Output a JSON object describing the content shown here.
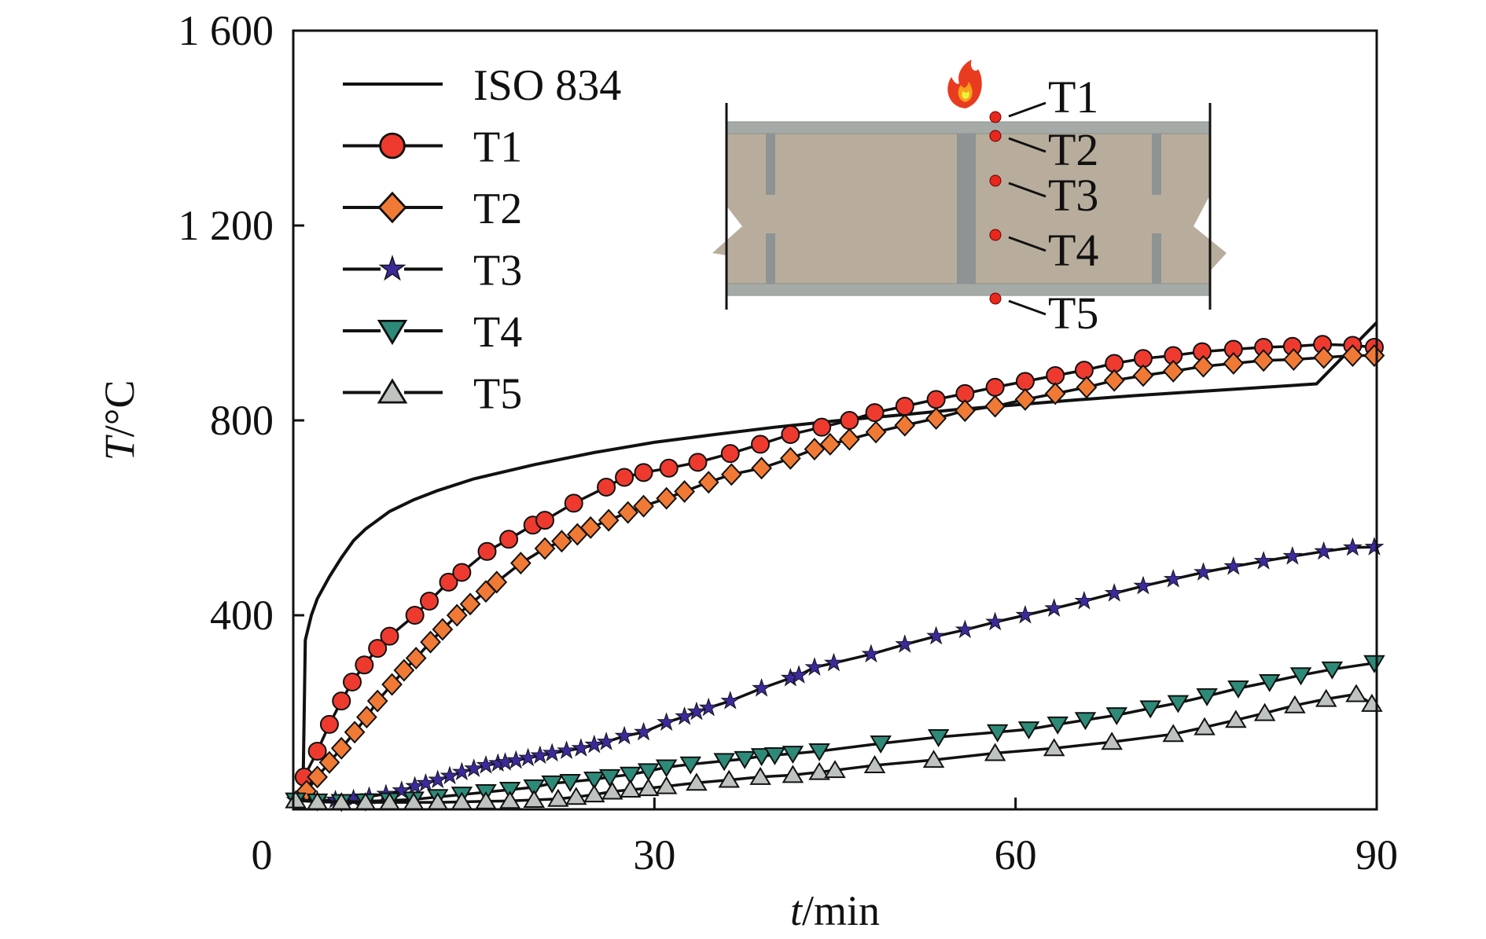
{
  "chart_data": {
    "type": "line",
    "xlabel": {
      "italic": "t",
      "rest": "/min"
    },
    "ylabel": {
      "italic": "T",
      "rest": "/°C"
    },
    "xlim": [
      0,
      90
    ],
    "ylim": [
      0,
      1600
    ],
    "x_ticks": [
      "0",
      "30",
      "60",
      "90"
    ],
    "x_tick_values": [
      0,
      30,
      60,
      90
    ],
    "y_ticks": [
      "1 600",
      "1 200",
      "800",
      "400"
    ],
    "y_tick_values": [
      1600,
      1200,
      800,
      400
    ],
    "grid": false,
    "legend_position": "top-left",
    "series": [
      {
        "name": "ISO 834",
        "marker": "none",
        "color": "#111111",
        "x": [
          0.8,
          1,
          1.5,
          2,
          3,
          4,
          5,
          6,
          8,
          10,
          12,
          15,
          20,
          25,
          30,
          35,
          40,
          45,
          50,
          55,
          60,
          65,
          70,
          75,
          80,
          85,
          90
        ],
        "y": [
          20,
          349,
          400,
          434,
          479,
          518,
          553,
          577,
          613,
          637,
          656,
          680,
          709,
          734,
          755,
          771,
          786,
          799,
          810,
          822,
          832,
          842,
          851,
          859,
          867,
          875,
          1001
        ]
      },
      {
        "name": "T1",
        "marker": "circle",
        "color": "#ee3a2e",
        "x": [
          0.9,
          2,
          3,
          4,
          4.9,
          5.9,
          7,
          8,
          10.1,
          11.3,
          12.9,
          14,
          16.1,
          17.9,
          19.9,
          20.9,
          23.3,
          26,
          27.5,
          29.1,
          31.2,
          33.6,
          36.3,
          38.8,
          41.3,
          43.9,
          46.2,
          48.3,
          50.8,
          53.4,
          55.8,
          58.3,
          60.8,
          63.3,
          65.7,
          68.2,
          70.6,
          73.1,
          75.5,
          78.1,
          80.6,
          83,
          85.5,
          88,
          89.8
        ],
        "y": [
          68,
          121,
          176,
          224,
          263,
          298,
          332,
          357,
          400,
          429,
          468,
          488,
          531,
          556,
          585,
          595,
          630,
          663,
          683,
          693,
          702,
          714,
          732,
          751,
          771,
          786,
          800,
          816,
          829,
          843,
          855,
          868,
          880,
          892,
          903,
          917,
          927,
          933,
          941,
          946,
          950,
          952,
          956,
          954,
          950
        ]
      },
      {
        "name": "T2",
        "marker": "diamond",
        "color": "#f07a35",
        "x": [
          1.1,
          2,
          3,
          4,
          5.1,
          6.1,
          7,
          8.2,
          9.2,
          10.2,
          11.4,
          12.4,
          13.6,
          14.7,
          16,
          16.9,
          18.9,
          20.9,
          22.3,
          23.6,
          24.7,
          26.2,
          27.8,
          29.1,
          31,
          32.5,
          34.5,
          36.4,
          38.9,
          41.3,
          43.3,
          44.6,
          46.2,
          48.4,
          50.8,
          53.4,
          55.8,
          58.3,
          60.8,
          63.3,
          65.9,
          68.2,
          70.6,
          73.1,
          75.6,
          78.1,
          80.6,
          83.1,
          85.6,
          88,
          89.8
        ],
        "y": [
          39,
          68,
          98,
          127,
          160,
          191,
          224,
          258,
          287,
          312,
          345,
          371,
          400,
          423,
          449,
          468,
          507,
          537,
          552,
          566,
          580,
          595,
          611,
          624,
          640,
          654,
          673,
          689,
          702,
          722,
          741,
          751,
          761,
          776,
          790,
          804,
          820,
          829,
          843,
          855,
          868,
          882,
          892,
          901,
          911,
          917,
          923,
          925,
          929,
          933,
          933
        ]
      },
      {
        "name": "T3",
        "marker": "star",
        "color": "#3b2a9a",
        "x": [
          0.2,
          2,
          3.5,
          5,
          6.3,
          7.7,
          9,
          10.1,
          11,
          12,
          13,
          14,
          15,
          16,
          17,
          17.6,
          18.5,
          19.5,
          20.5,
          21.5,
          22.7,
          23.9,
          25,
          26,
          27.5,
          29.1,
          31,
          32.5,
          33.5,
          34.5,
          36.3,
          38.9,
          41.3,
          42,
          43.3,
          44.9,
          48,
          50.8,
          53.4,
          55.8,
          58.3,
          60.8,
          63.2,
          65.7,
          68.2,
          70.6,
          73.1,
          75.6,
          78.1,
          80.6,
          83,
          85.6,
          88,
          89.8
        ],
        "y": [
          20,
          20,
          21,
          23,
          28,
          33,
          40,
          49,
          55,
          62,
          70,
          78,
          85,
          92,
          96,
          98,
          102,
          107,
          112,
          117,
          122,
          127,
          134,
          140,
          152,
          160,
          180,
          192,
          202,
          210,
          224,
          250,
          271,
          277,
          293,
          302,
          320,
          340,
          357,
          370,
          386,
          400,
          414,
          429,
          445,
          460,
          474,
          488,
          500,
          511,
          521,
          531,
          539,
          540
        ]
      },
      {
        "name": "T4",
        "marker": "triangle-down",
        "color": "#2e8a78",
        "x": [
          0.2,
          2,
          4,
          6,
          8,
          10,
          12,
          14,
          16,
          18,
          20,
          21.5,
          23,
          25,
          26.3,
          28,
          29.5,
          31,
          33,
          35.8,
          37.5,
          38.9,
          40,
          41.5,
          43.7,
          48.8,
          53.6,
          58.5,
          61.1,
          63.5,
          65.8,
          68.4,
          71.2,
          73.5,
          75.9,
          78.5,
          81.1,
          83.7,
          86.3,
          89.8
        ],
        "y": [
          20,
          18,
          17,
          18,
          20,
          22,
          27,
          32,
          37,
          42,
          47,
          55,
          58,
          63,
          68,
          73,
          80,
          88,
          94,
          101,
          105,
          111,
          113,
          116,
          121,
          137,
          150,
          160,
          166,
          176,
          185,
          195,
          209,
          220,
          234,
          250,
          263,
          277,
          289,
          302
        ]
      },
      {
        "name": "T5",
        "marker": "triangle-up",
        "color": "#bfc3c0",
        "x": [
          0.2,
          2,
          4,
          6,
          8,
          10,
          12,
          14,
          16,
          18,
          20,
          22,
          23.5,
          25,
          26.5,
          28,
          29.5,
          31,
          33.5,
          36.2,
          38.8,
          41.5,
          43.7,
          45,
          48.3,
          53.2,
          58.3,
          63.2,
          68,
          73.1,
          75.7,
          78.3,
          80.7,
          83.2,
          85.8,
          88.3,
          89.6
        ],
        "y": [
          20,
          17,
          16,
          16,
          16,
          16,
          16,
          17,
          18,
          19,
          21,
          23,
          27,
          32,
          38,
          42,
          45,
          49,
          56,
          62,
          68,
          72,
          78,
          82,
          92,
          103,
          117,
          127,
          140,
          156,
          170,
          185,
          199,
          215,
          228,
          238,
          218
        ]
      }
    ]
  },
  "inset": {
    "labels": [
      "T1",
      "T2",
      "T3",
      "T4",
      "T5"
    ],
    "icon": "fire-icon",
    "sensor_color": "#e8281e",
    "concrete_color": "#b8ad9c",
    "plate_color": "#a5aaa6"
  }
}
